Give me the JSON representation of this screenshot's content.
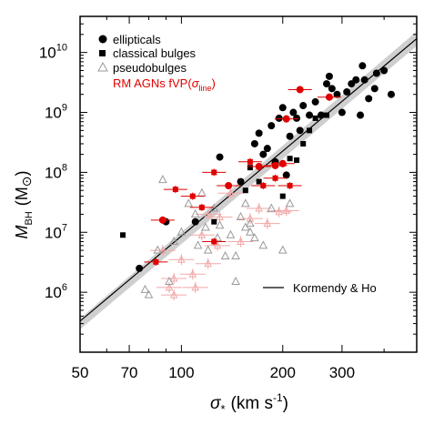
{
  "chart_data": {
    "type": "scatter",
    "xlabel_main": "σ",
    "xlabel_sub": "*",
    "xlabel_unit": "(km s",
    "xlabel_exp": "-1",
    "xlabel_close": ")",
    "ylabel_main": "M",
    "ylabel_sub": "BH",
    "ylabel_unit": "(M",
    "ylabel_sym": "⊙",
    "ylabel_close": ")",
    "x_scale": "log",
    "y_scale": "log",
    "xlim": [
      50,
      500
    ],
    "ylim": [
      100000,
      40000000000
    ],
    "x_ticks": [
      {
        "value": 50,
        "label": "50"
      },
      {
        "value": 70,
        "label": "70"
      },
      {
        "value": 100,
        "label": "100"
      },
      {
        "value": 200,
        "label": "200"
      },
      {
        "value": 300,
        "label": "300"
      }
    ],
    "y_ticks": [
      {
        "value": 1000000,
        "base": "10",
        "exp": "6"
      },
      {
        "value": 10000000,
        "base": "10",
        "exp": "7"
      },
      {
        "value": 100000000,
        "base": "10",
        "exp": "8"
      },
      {
        "value": 1000000000,
        "base": "10",
        "exp": "9"
      },
      {
        "value": 10000000000,
        "base": "10",
        "exp": "10"
      }
    ],
    "legend": {
      "position": "top-left",
      "ellipticals": "ellipticals",
      "classical": "classical bulges",
      "pseudo": "pseudobulges",
      "rm_prefix": "RM AGNs fVP(",
      "rm_sigma": "σ",
      "rm_sub": "line",
      "rm_close": ")"
    },
    "fit_label": "Kormendy & Ho",
    "fit_line": {
      "x": [
        50,
        500
      ],
      "y": [
        330000,
        17000000000
      ]
    },
    "series": {
      "ellipticals": [
        [
          75,
          2500000
        ],
        [
          90,
          15000000
        ],
        [
          110,
          15000000
        ],
        [
          130,
          180000000
        ],
        [
          150,
          70000000
        ],
        [
          165,
          300000000
        ],
        [
          170,
          450000000
        ],
        [
          175,
          200000000
        ],
        [
          180,
          250000000
        ],
        [
          185,
          600000000
        ],
        [
          190,
          150000000
        ],
        [
          195,
          800000000
        ],
        [
          200,
          1200000000
        ],
        [
          205,
          90000000
        ],
        [
          210,
          400000000
        ],
        [
          215,
          1000000000
        ],
        [
          220,
          800000000
        ],
        [
          225,
          500000000
        ],
        [
          230,
          1300000000
        ],
        [
          240,
          900000000
        ],
        [
          250,
          1500000000
        ],
        [
          260,
          900000000
        ],
        [
          270,
          3000000000
        ],
        [
          275,
          4000000000
        ],
        [
          280,
          2500000000
        ],
        [
          290,
          2000000000
        ],
        [
          300,
          1000000000
        ],
        [
          310,
          2200000000
        ],
        [
          320,
          3000000000
        ],
        [
          330,
          3500000000
        ],
        [
          340,
          900000000
        ],
        [
          345,
          6000000000
        ],
        [
          350,
          3500000000
        ],
        [
          360,
          1700000000
        ],
        [
          375,
          2500000000
        ],
        [
          380,
          4500000000
        ],
        [
          400,
          5000000000
        ],
        [
          420,
          2000000000
        ]
      ],
      "classical": [
        [
          67,
          9000000
        ],
        [
          125,
          15000000
        ],
        [
          150,
          70000000
        ],
        [
          155,
          50000000
        ],
        [
          160,
          120000000
        ],
        [
          170,
          70000000
        ],
        [
          200,
          40000000
        ],
        [
          210,
          170000000
        ],
        [
          220,
          160000000
        ],
        [
          230,
          300000000
        ],
        [
          240,
          500000000
        ],
        [
          250,
          800000000
        ],
        [
          270,
          900000000
        ]
      ],
      "pseudo": [
        [
          78,
          1100000
        ],
        [
          80,
          900000
        ],
        [
          85,
          5000000
        ],
        [
          88,
          75000000
        ],
        [
          92,
          1500000
        ],
        [
          95,
          7000000
        ],
        [
          100,
          10000000
        ],
        [
          105,
          30000000
        ],
        [
          110,
          20000000
        ],
        [
          112,
          6000000
        ],
        [
          115,
          45000000
        ],
        [
          118,
          12000000
        ],
        [
          120,
          5000000
        ],
        [
          125,
          25000000
        ],
        [
          128,
          8000000
        ],
        [
          130,
          13000000
        ],
        [
          135,
          4000000
        ],
        [
          140,
          9000000
        ],
        [
          145,
          1500000
        ],
        [
          150,
          18000000
        ],
        [
          155,
          30000000
        ],
        [
          160,
          10000000
        ],
        [
          165,
          8000000
        ],
        [
          175,
          6000000
        ],
        [
          185,
          25000000
        ],
        [
          200,
          5000000
        ],
        [
          210,
          30000000
        ],
        [
          160,
          14000000
        ],
        [
          145,
          4000000
        ],
        [
          155,
          12000000
        ]
      ],
      "rm_agn": [
        [
          88,
          16000000,
          "round"
        ],
        [
          84,
          3200000,
          "square"
        ],
        [
          96,
          52000000,
          "square"
        ],
        [
          108,
          40000000,
          "square"
        ],
        [
          115,
          26000000,
          "square"
        ],
        [
          125,
          100000000,
          "square"
        ],
        [
          138,
          60000000,
          "round"
        ],
        [
          160,
          150000000,
          "square"
        ],
        [
          190,
          130000000,
          "round"
        ],
        [
          200,
          140000000,
          "round"
        ],
        [
          210,
          60000000,
          "square"
        ],
        [
          205,
          780000000,
          "round"
        ],
        [
          225,
          2400000000,
          "round"
        ],
        [
          275,
          1800000000,
          "round"
        ],
        [
          190,
          80000000,
          "square"
        ],
        [
          175,
          60000000,
          "square"
        ],
        [
          170,
          125000000,
          "round"
        ],
        [
          125,
          7000000,
          "square"
        ]
      ],
      "rm_agn_faint": [
        [
          88,
          5000000
        ],
        [
          92,
          1200000
        ],
        [
          95,
          1700000
        ],
        [
          100,
          3500000
        ],
        [
          108,
          2000000
        ],
        [
          115,
          9000000
        ],
        [
          120,
          20000000
        ],
        [
          128,
          6000000
        ],
        [
          130,
          18000000
        ],
        [
          140,
          45000000
        ],
        [
          150,
          7000000
        ],
        [
          160,
          17000000
        ],
        [
          170,
          25000000
        ],
        [
          180,
          14000000
        ],
        [
          195,
          22000000
        ],
        [
          205,
          23000000
        ],
        [
          95,
          900000
        ],
        [
          110,
          1200000
        ],
        [
          120,
          3000000
        ]
      ]
    },
    "colors": {
      "ellipticals": "#000000",
      "classical": "#000000",
      "pseudo": "#9a9a9a",
      "rm_agn": "#e00000",
      "rm_agn_faint": "#f2a8a8",
      "fit_band": "#cfcfcf"
    }
  }
}
